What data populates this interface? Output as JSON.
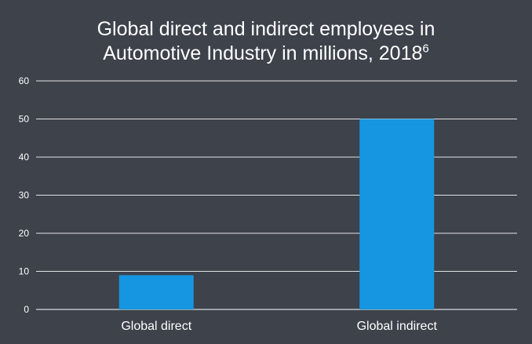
{
  "chart_data": {
    "type": "bar",
    "title": "Global direct and indirect employees in",
    "title_line2": "Automotive Industry in millions, 2018",
    "title_superscript": "6",
    "xlabel": "",
    "ylabel": "",
    "categories": [
      "Global direct",
      "Global indirect"
    ],
    "values": [
      9,
      50
    ],
    "ylim": [
      0,
      60
    ],
    "yticks": [
      0,
      10,
      20,
      30,
      40,
      50,
      60
    ],
    "grid": true,
    "colors": {
      "background": "#3d424b",
      "bar": "#1696e0",
      "grid": "#ffffff",
      "text": "#ffffff"
    }
  }
}
